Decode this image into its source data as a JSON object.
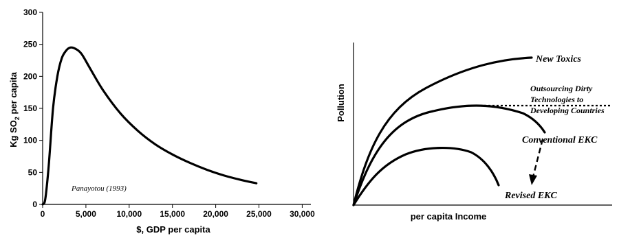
{
  "chart_data": [
    {
      "type": "line",
      "xlabel": "$, GDP per capita",
      "ylabel_main": "Kg SO",
      "ylabel_sub": "2",
      "ylabel_rest": " per capita",
      "xlim": [
        0,
        31000
      ],
      "ylim": [
        0,
        300
      ],
      "x_ticks": [
        0,
        5000,
        10000,
        15000,
        20000,
        25000,
        30000
      ],
      "x_tick_labels": [
        "0",
        "5,000",
        "10,000",
        "15,000",
        "20,000",
        "25,000",
        "30,000"
      ],
      "y_ticks": [
        0,
        50,
        100,
        150,
        200,
        250,
        300
      ],
      "y_tick_labels": [
        "0",
        "50",
        "100",
        "150",
        "200",
        "250",
        "300"
      ],
      "annotation": "Panayotou (1993)",
      "series": [
        {
          "x": [
            0,
            300,
            700,
            1200,
            1700,
            2200,
            2700,
            3200,
            3800,
            4500,
            5500,
            7000,
            9000,
            11000,
            13000,
            15000,
            17000,
            19000,
            21000,
            23000,
            24700
          ],
          "y": [
            0,
            8,
            60,
            150,
            200,
            228,
            240,
            245,
            243,
            235,
            212,
            178,
            142,
            115,
            94,
            78,
            65,
            54,
            45,
            38,
            33
          ]
        }
      ]
    },
    {
      "type": "line",
      "xlabel": "per capita Income",
      "ylabel": "Pollution",
      "curves": [
        {
          "label": "New Toxics",
          "style": "solid"
        },
        {
          "label": "Outsourcing Dirty Technologies to Developing Countries",
          "style": "dotted"
        },
        {
          "label": "Conventional EKC",
          "style": "solid"
        },
        {
          "label": "Revised EKC",
          "style": "solid"
        }
      ],
      "label_lines": {
        "outsourcing": [
          "Outsourcing Dirty",
          "Technologies to",
          "Developing Countries"
        ]
      },
      "arrow": {
        "style": "dashed",
        "from": "Conventional EKC",
        "to": "Revised EKC"
      }
    }
  ]
}
